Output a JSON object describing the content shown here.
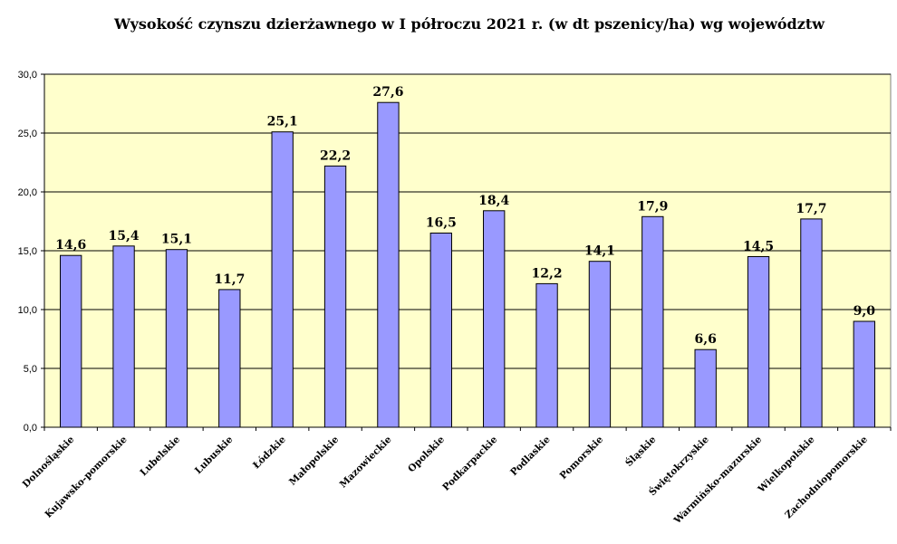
{
  "chart_data": {
    "type": "bar",
    "title": "Wysokość czynszu dzierżawnego w I półroczu 2021 r. (w dt  pszenicy/ha) wg województw",
    "xlabel": "",
    "ylabel": "",
    "categories": [
      "Dolnośląskie",
      "Kujawsko-pomorskie",
      "Lubelskie",
      "Lubuskie",
      "Łódzkie",
      "Małopolskie",
      "Mazowieckie",
      "Opolskie",
      "Podkarpackie",
      "Podlaskie",
      "Pomorskie",
      "Śląskie",
      "Świętokrzyskie",
      "Warmińsko-mazurskie",
      "Wielkopolskie",
      "Zachodniopomorskie"
    ],
    "values": [
      14.6,
      15.4,
      15.1,
      11.7,
      25.1,
      22.2,
      27.6,
      16.5,
      18.4,
      12.2,
      14.1,
      17.9,
      6.6,
      14.5,
      17.7,
      9.0
    ],
    "value_labels": [
      "14,6",
      "15,4",
      "15,1",
      "11,7",
      "25,1",
      "22,2",
      "27,6",
      "16,5",
      "18,4",
      "12,2",
      "14,1",
      "17,9",
      "6,6",
      "14,5",
      "17,7",
      "9,0"
    ],
    "ylim": [
      0,
      30
    ],
    "yticks": [
      0,
      5,
      10,
      15,
      20,
      25,
      30
    ],
    "ytick_labels": [
      "0,0",
      "5,0",
      "10,0",
      "15,0",
      "20,0",
      "25,0",
      "30,0"
    ],
    "grid": true,
    "legend": "none",
    "colors": {
      "bar": "#9999ff",
      "bar_stroke": "#000000",
      "plot_bg": "#ffffcc",
      "grid": "#000000"
    }
  }
}
